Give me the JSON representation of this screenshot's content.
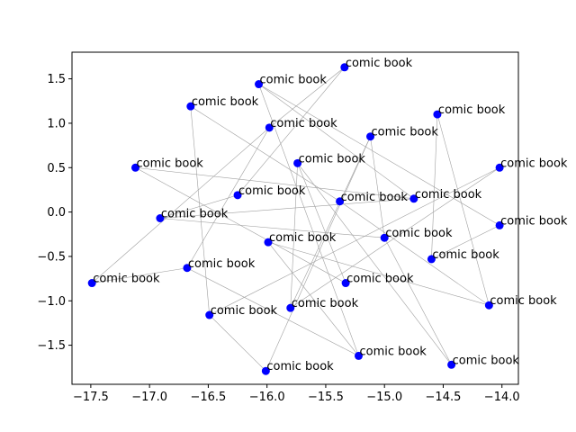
{
  "chart_data": {
    "type": "scatter",
    "title": "",
    "xlabel": "",
    "ylabel": "",
    "xlim": [
      -17.66,
      -13.86
    ],
    "ylim": [
      -1.94,
      1.8
    ],
    "grid": false,
    "x_ticks": [
      -17.5,
      -17.0,
      -16.5,
      -16.0,
      -15.5,
      -15.0,
      -14.5,
      -14.0
    ],
    "x_tick_labels": [
      "−17.5",
      "−17.0",
      "−16.5",
      "−16.0",
      "−15.5",
      "−15.0",
      "−14.5",
      "−14.0"
    ],
    "y_ticks": [
      -1.5,
      -1.0,
      -0.5,
      0.0,
      0.5,
      1.0,
      1.5
    ],
    "y_tick_labels": [
      "−1.5",
      "−1.0",
      "−0.5",
      "0.0",
      "0.5",
      "1.0",
      "1.5"
    ],
    "point_color": "#0000ff",
    "edge_color": "#a0a0a0",
    "points": [
      {
        "x": -15.34,
        "y": 1.63,
        "label": "comic book"
      },
      {
        "x": -16.07,
        "y": 1.44,
        "label": "comic book"
      },
      {
        "x": -16.65,
        "y": 1.19,
        "label": "comic book"
      },
      {
        "x": -14.55,
        "y": 1.1,
        "label": "comic book"
      },
      {
        "x": -15.98,
        "y": 0.95,
        "label": "comic book"
      },
      {
        "x": -15.12,
        "y": 0.85,
        "label": "comic book"
      },
      {
        "x": -15.74,
        "y": 0.55,
        "label": "comic book"
      },
      {
        "x": -17.12,
        "y": 0.5,
        "label": "comic book"
      },
      {
        "x": -14.02,
        "y": 0.5,
        "label": "comic book"
      },
      {
        "x": -16.25,
        "y": 0.19,
        "label": "comic book"
      },
      {
        "x": -15.38,
        "y": 0.12,
        "label": "comic book"
      },
      {
        "x": -14.75,
        "y": 0.15,
        "label": "comic book"
      },
      {
        "x": -16.91,
        "y": -0.07,
        "label": "comic book"
      },
      {
        "x": -14.02,
        "y": -0.15,
        "label": "comic book"
      },
      {
        "x": -15.99,
        "y": -0.34,
        "label": "comic book"
      },
      {
        "x": -15.0,
        "y": -0.29,
        "label": "comic book"
      },
      {
        "x": -14.6,
        "y": -0.53,
        "label": "comic book"
      },
      {
        "x": -16.68,
        "y": -0.63,
        "label": "comic book"
      },
      {
        "x": -17.49,
        "y": -0.8,
        "label": "comic book"
      },
      {
        "x": -15.33,
        "y": -0.8,
        "label": "comic book"
      },
      {
        "x": -14.11,
        "y": -1.05,
        "label": "comic book"
      },
      {
        "x": -15.8,
        "y": -1.08,
        "label": "comic book"
      },
      {
        "x": -16.49,
        "y": -1.16,
        "label": "comic book"
      },
      {
        "x": -15.22,
        "y": -1.62,
        "label": "comic book"
      },
      {
        "x": -14.43,
        "y": -1.72,
        "label": "comic book"
      },
      {
        "x": -16.01,
        "y": -1.79,
        "label": "comic book"
      }
    ],
    "edges": [
      [
        0,
        4
      ],
      [
        0,
        9
      ],
      [
        1,
        11
      ],
      [
        1,
        13
      ],
      [
        2,
        22
      ],
      [
        2,
        10
      ],
      [
        3,
        20
      ],
      [
        3,
        16
      ],
      [
        4,
        17
      ],
      [
        4,
        18
      ],
      [
        5,
        15
      ],
      [
        5,
        21
      ],
      [
        5,
        25
      ],
      [
        6,
        21
      ],
      [
        6,
        19
      ],
      [
        6,
        24
      ],
      [
        7,
        11
      ],
      [
        7,
        19
      ],
      [
        8,
        22
      ],
      [
        8,
        21
      ],
      [
        9,
        12
      ],
      [
        10,
        20
      ],
      [
        12,
        11
      ],
      [
        12,
        15
      ],
      [
        14,
        23
      ],
      [
        14,
        20
      ],
      [
        15,
        24
      ],
      [
        16,
        13
      ],
      [
        17,
        18
      ],
      [
        17,
        23
      ],
      [
        22,
        25
      ],
      [
        1,
        23
      ]
    ]
  }
}
